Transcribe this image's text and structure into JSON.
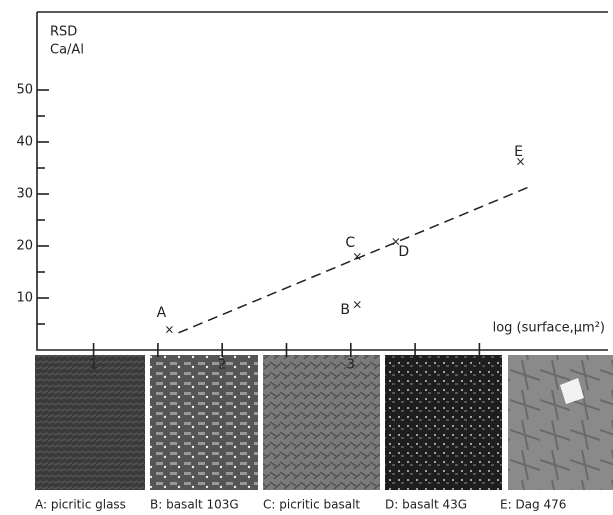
{
  "chart_data": {
    "type": "scatter",
    "ylabel": [
      "RSD",
      "Ca/Al"
    ],
    "xlabel": "log (surface,μm²)",
    "x": [
      1.59,
      3.05,
      3.05,
      3.35,
      4.32
    ],
    "values": [
      3.8,
      8.7,
      17.9,
      20.8,
      36.2
    ],
    "labels": [
      "A",
      "B",
      "C",
      "D",
      "E"
    ],
    "trendline": {
      "x": [
        1.66,
        4.38
      ],
      "y": [
        3.3,
        31.3
      ]
    },
    "xlim": [
      0.56,
      5
    ],
    "xticks": [
      1,
      2,
      3,
      4
    ],
    "xminorticks": [
      1.5,
      2.5,
      3.5
    ],
    "ylim": [
      0,
      65
    ],
    "yticks": [
      10,
      20,
      30,
      40,
      50
    ],
    "yminorticks": [
      5,
      15,
      25,
      35,
      45
    ],
    "color": "#222"
  },
  "panels": [
    "A: picritic glass",
    "B: basalt 103G",
    "C: picritic basalt",
    "D: basalt 43G",
    "E: Dag 476"
  ]
}
